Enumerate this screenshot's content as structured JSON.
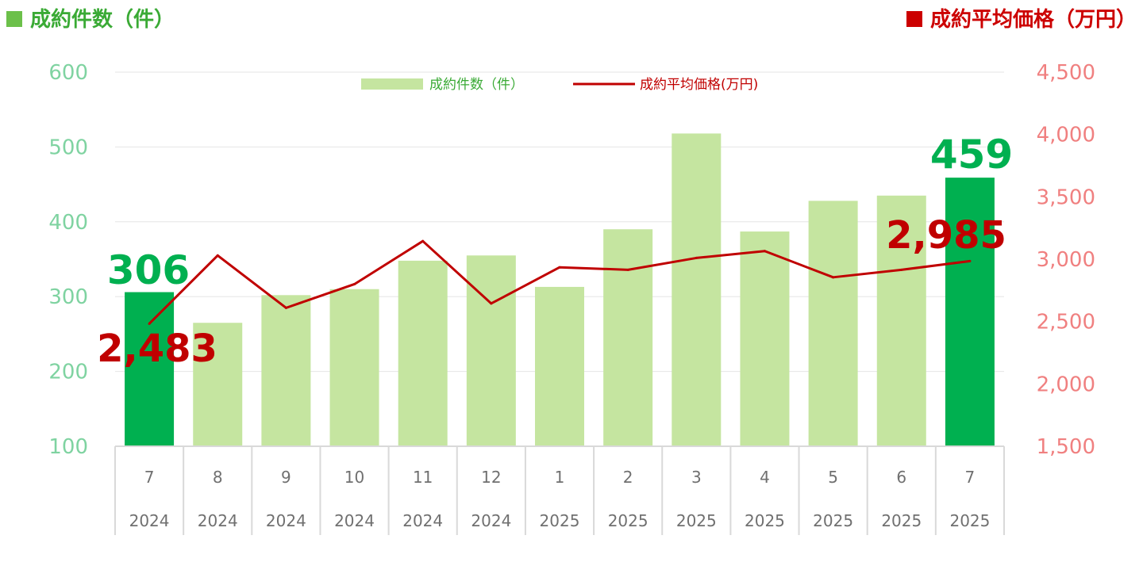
{
  "header": {
    "left_title": "成約件数（件）",
    "right_title": "成約平均価格（万円）"
  },
  "legend": {
    "count_label": "成約件数（件）",
    "price_label": "成約平均価格(万円)"
  },
  "colors": {
    "bar_normal": "#c5e5a0",
    "bar_highlight": "#00b050",
    "line": "#c00000",
    "left_axis": "#7fd3a1",
    "right_axis": "#f08080"
  },
  "chart_data": {
    "type": "bar",
    "categories": [
      {
        "month": "7",
        "year": "2024"
      },
      {
        "month": "8",
        "year": "2024"
      },
      {
        "month": "9",
        "year": "2024"
      },
      {
        "month": "10",
        "year": "2024"
      },
      {
        "month": "11",
        "year": "2024"
      },
      {
        "month": "12",
        "year": "2024"
      },
      {
        "month": "1",
        "year": "2025"
      },
      {
        "month": "2",
        "year": "2025"
      },
      {
        "month": "3",
        "year": "2025"
      },
      {
        "month": "4",
        "year": "2025"
      },
      {
        "month": "5",
        "year": "2025"
      },
      {
        "month": "6",
        "year": "2025"
      },
      {
        "month": "7",
        "year": "2025"
      }
    ],
    "series": [
      {
        "name": "成約件数（件）",
        "type": "bar",
        "axis": "left",
        "values": [
          306,
          265,
          302,
          310,
          348,
          355,
          313,
          390,
          518,
          387,
          428,
          435,
          459
        ],
        "highlight": [
          0,
          12
        ]
      },
      {
        "name": "成約平均価格(万円)",
        "type": "line",
        "axis": "right",
        "values": [
          2483,
          3030,
          2610,
          2800,
          3145,
          2645,
          2935,
          2915,
          3010,
          3065,
          2855,
          2915,
          2985
        ]
      }
    ],
    "left_axis": {
      "min": 100,
      "max": 600,
      "ticks": [
        "100",
        "200",
        "300",
        "400",
        "500",
        "600"
      ]
    },
    "right_axis": {
      "min": 1500,
      "max": 4500,
      "ticks": [
        "1,500",
        "2,000",
        "2,500",
        "3,000",
        "3,500",
        "4,000",
        "4,500"
      ]
    },
    "annotations": {
      "first_count": "306",
      "last_count": "459",
      "first_price": "2,483",
      "last_price": "2,985"
    },
    "grid": true,
    "legend_position": "top-center"
  }
}
